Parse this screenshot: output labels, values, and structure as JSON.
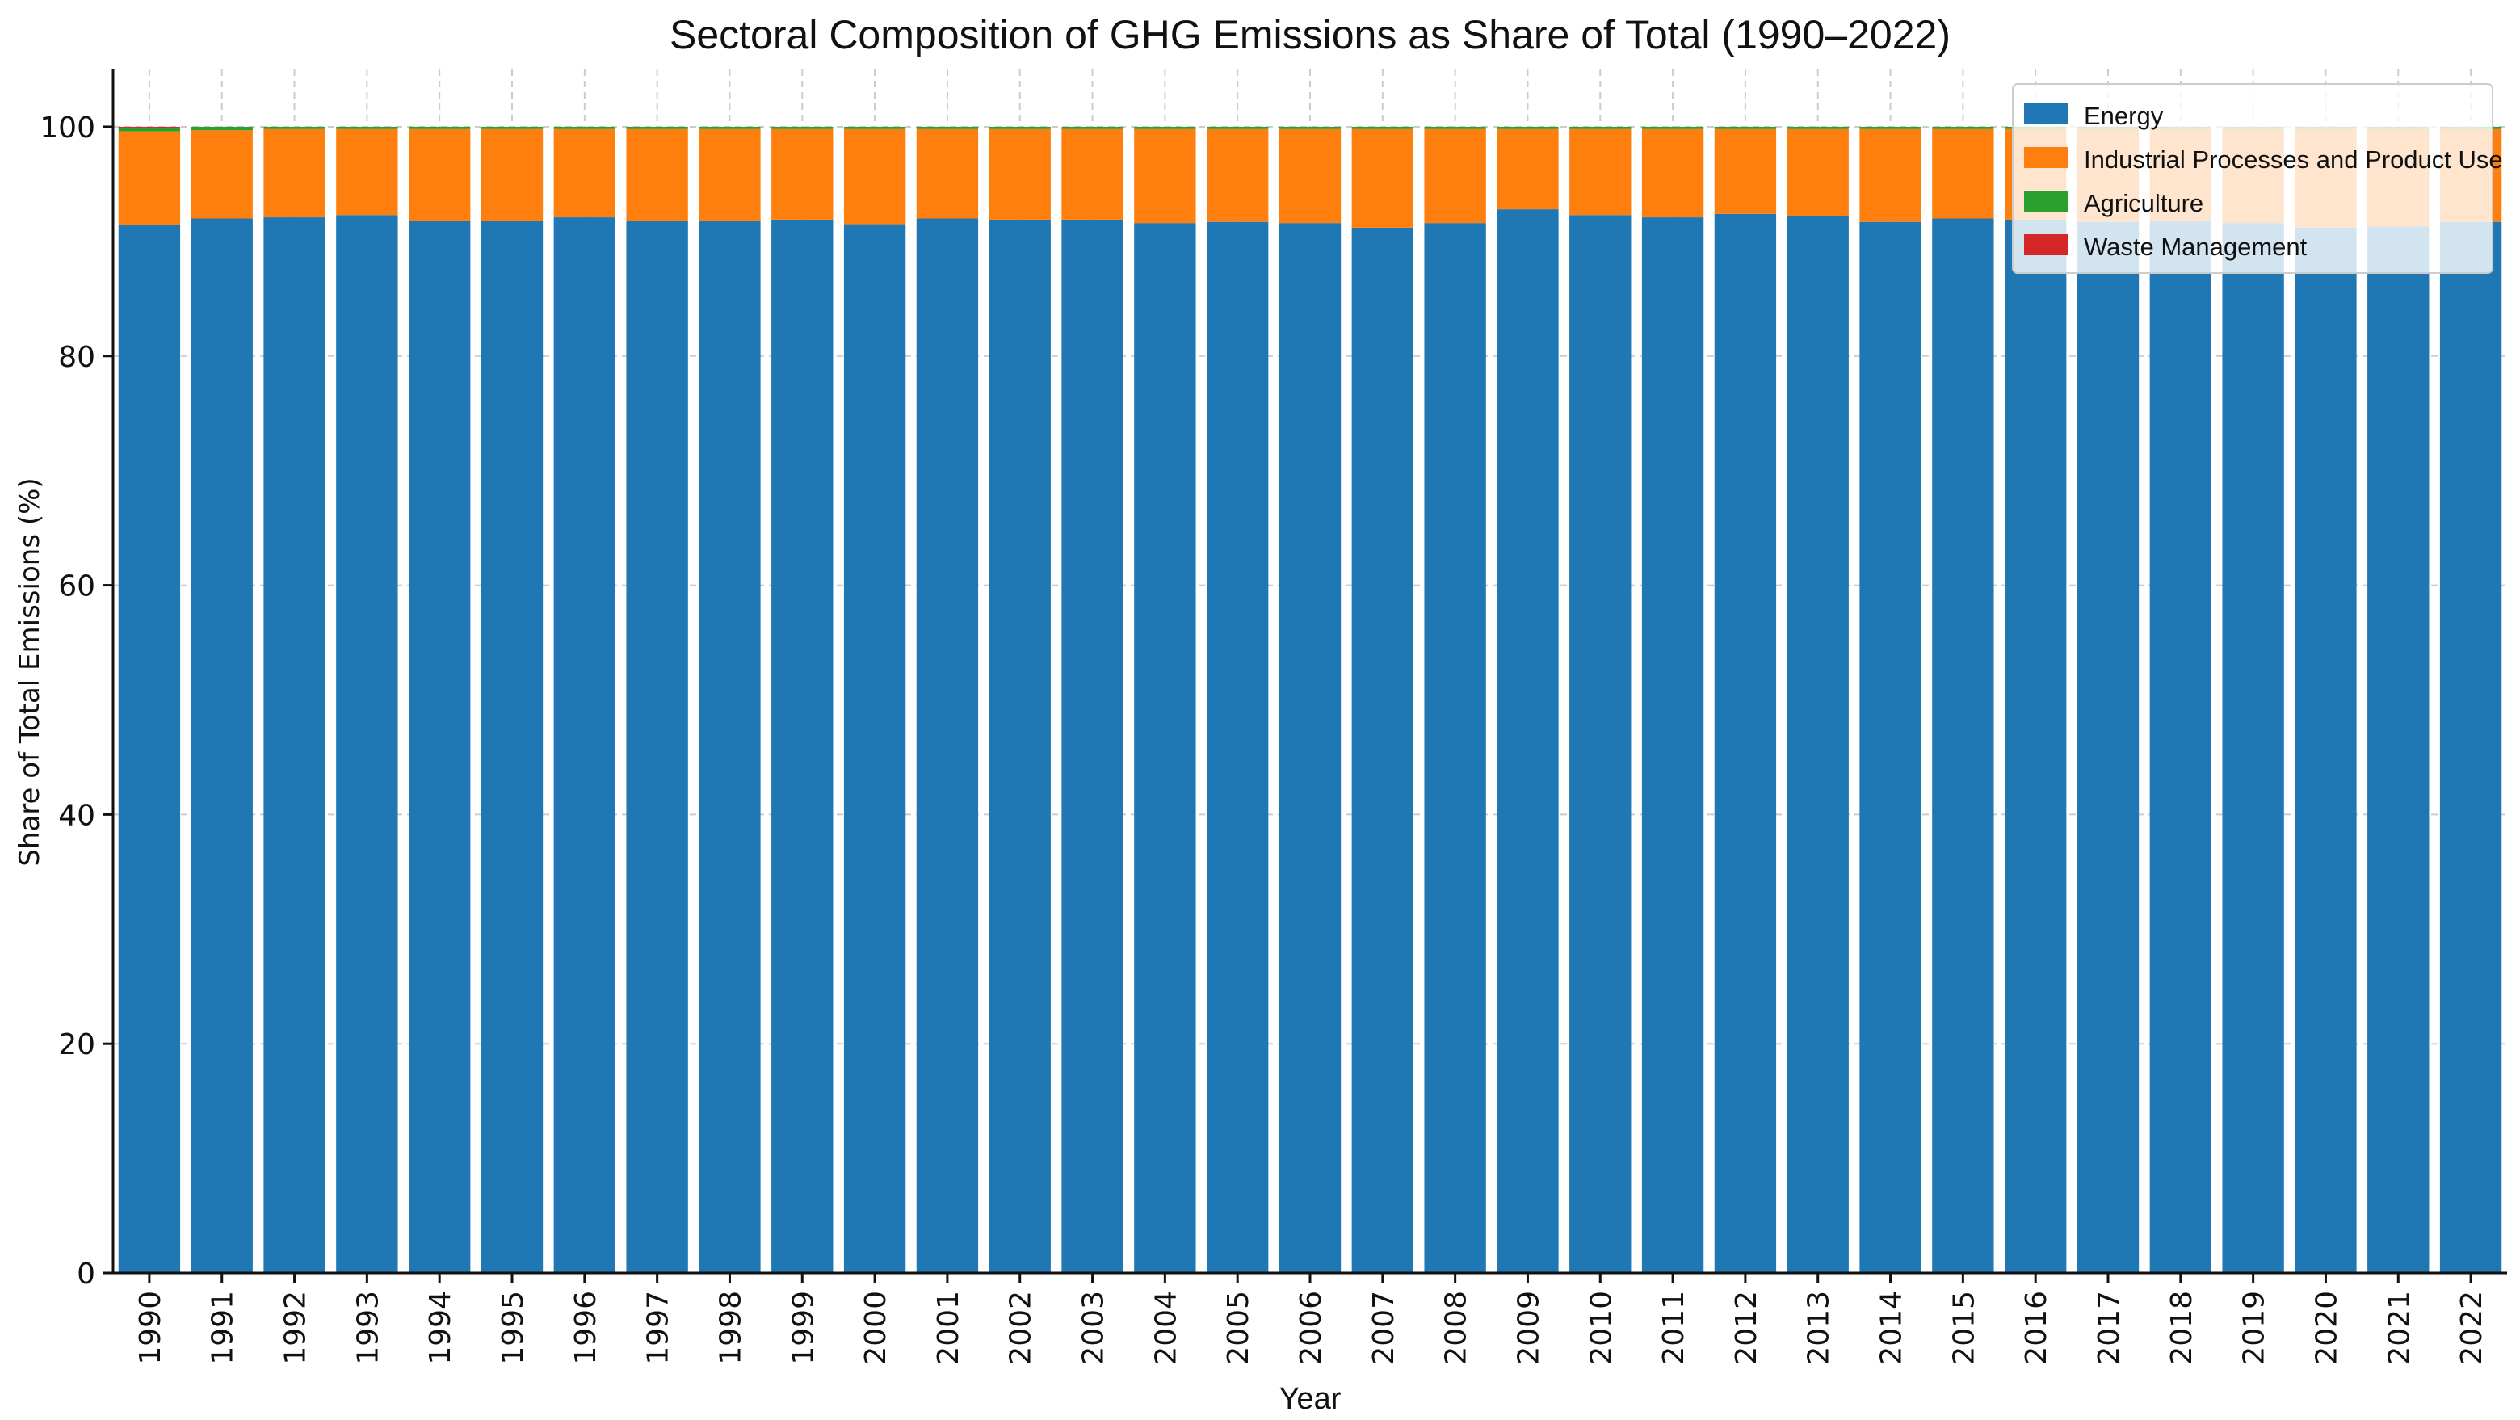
{
  "chart_data": {
    "type": "bar",
    "stacked": true,
    "title": "Sectoral Composition of GHG Emissions as Share of Total (1990–2022)",
    "xlabel": "Year",
    "ylabel": "Share of Total Emissions (%)",
    "ylim": [
      0,
      105
    ],
    "yticks": [
      0,
      20,
      40,
      60,
      80,
      100
    ],
    "grid": true,
    "legend_position": "top-right",
    "categories": [
      "1990",
      "1991",
      "1992",
      "1993",
      "1994",
      "1995",
      "1996",
      "1997",
      "1998",
      "1999",
      "2000",
      "2001",
      "2002",
      "2003",
      "2004",
      "2005",
      "2006",
      "2007",
      "2008",
      "2009",
      "2010",
      "2011",
      "2012",
      "2013",
      "2014",
      "2015",
      "2016",
      "2017",
      "2018",
      "2019",
      "2020",
      "2021",
      "2022"
    ],
    "series": [
      {
        "name": "Energy",
        "color": "#1f77b4",
        "values": [
          91.4,
          92.0,
          92.1,
          92.3,
          91.8,
          91.8,
          92.1,
          91.8,
          91.8,
          91.9,
          91.5,
          92.0,
          91.9,
          91.9,
          91.6,
          91.7,
          91.6,
          91.2,
          91.6,
          92.8,
          92.3,
          92.1,
          92.4,
          92.2,
          91.7,
          92.0,
          91.9,
          91.7,
          91.8,
          91.6,
          91.2,
          91.3,
          91.7
        ]
      },
      {
        "name": "Industrial Processes and Product Use",
        "color": "#ff7f0e",
        "values": [
          8.2,
          7.7,
          7.7,
          7.5,
          8.0,
          8.0,
          7.7,
          8.0,
          8.0,
          7.9,
          8.3,
          7.8,
          7.9,
          7.9,
          8.2,
          8.1,
          8.2,
          8.6,
          8.2,
          7.0,
          7.5,
          7.7,
          7.4,
          7.6,
          8.1,
          7.8,
          7.9,
          8.1,
          8.0,
          8.2,
          8.6,
          8.5,
          8.1
        ]
      },
      {
        "name": "Agriculture",
        "color": "#2ca02c",
        "values": [
          0.3,
          0.3,
          0.2,
          0.2,
          0.2,
          0.2,
          0.2,
          0.2,
          0.2,
          0.2,
          0.2,
          0.2,
          0.2,
          0.2,
          0.2,
          0.2,
          0.2,
          0.2,
          0.2,
          0.2,
          0.2,
          0.2,
          0.2,
          0.2,
          0.2,
          0.2,
          0.2,
          0.2,
          0.2,
          0.2,
          0.2,
          0.2,
          0.2
        ]
      },
      {
        "name": "Waste Management",
        "color": "#d62728",
        "values": [
          0.1,
          0.0,
          0.0,
          0.0,
          0.0,
          0.0,
          0.0,
          0.0,
          0.0,
          0.0,
          0.0,
          0.0,
          0.0,
          0.0,
          0.0,
          0.0,
          0.0,
          0.0,
          0.0,
          0.0,
          0.0,
          0.0,
          0.0,
          0.0,
          0.0,
          0.0,
          0.0,
          0.0,
          0.0,
          0.0,
          0.0,
          0.0,
          0.0
        ]
      }
    ]
  }
}
